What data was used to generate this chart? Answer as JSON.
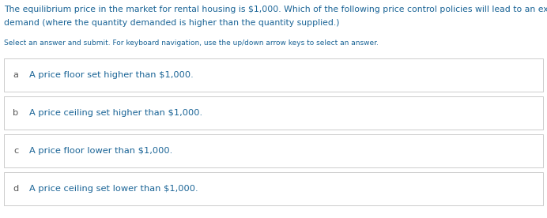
{
  "question_line1": "The equilibrium price in the market for rental housing is $1,000. Which of the following price control policies will lead to an excess",
  "question_line2": "demand (where the quantity demanded is higher than the quantity supplied.)",
  "instruction": "Select an answer and submit. For keyboard navigation, use the up/down arrow keys to select an answer.",
  "options": [
    {
      "label": "a",
      "text": "A price floor set higher than $1,000."
    },
    {
      "label": "b",
      "text": "A price ceiling set higher than $1,000."
    },
    {
      "label": "c",
      "text": "A price floor lower than $1,000."
    },
    {
      "label": "d",
      "text": "A price ceiling set lower than $1,000."
    }
  ],
  "question_color": "#1a6496",
  "option_text_color": "#1a6496",
  "label_color": "#555555",
  "instruction_color": "#1a6496",
  "bg_color": "#ffffff",
  "border_color": "#cccccc",
  "question_fontsize": 7.8,
  "instruction_fontsize": 6.5,
  "option_fontsize": 8.2,
  "label_fontsize": 8.2
}
